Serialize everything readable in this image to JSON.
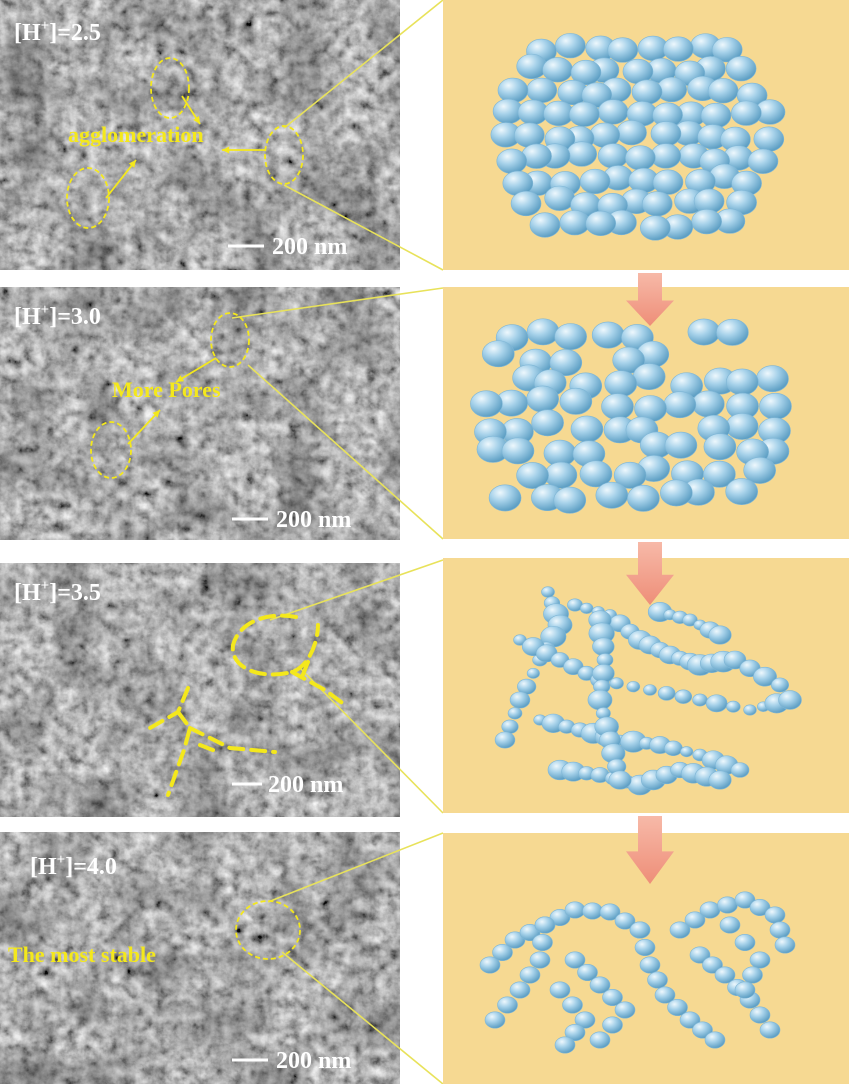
{
  "panels": [
    {
      "concentration_label": "[H",
      "concentration_sup": "+",
      "concentration_value": "]=2.5",
      "annotation": "agglomeration",
      "scale_bar": "200 nm"
    },
    {
      "concentration_label": "[H",
      "concentration_sup": "+",
      "concentration_value": "]=3.0",
      "annotation": "More Pores",
      "scale_bar": "200 nm"
    },
    {
      "concentration_label": "[H",
      "concentration_sup": "+",
      "concentration_value": "]=3.5",
      "annotation": "",
      "scale_bar": "200 nm"
    },
    {
      "concentration_label": "[H",
      "concentration_sup": "+",
      "concentration_value": "]=4.0",
      "annotation": "The most stable",
      "scale_bar": "200 nm"
    }
  ],
  "colors": {
    "sem_background": "#6b6b6b",
    "schematic_background": "#f6d992",
    "sphere_fill": "#a7d2ea",
    "sphere_highlight": "#e6f4fb",
    "sphere_shadow": "#5e9fc4",
    "annotation_yellow": "#f4e81c",
    "label_white": "#ffffff",
    "arrow_fill": "#f2a391",
    "connector_line": "#e8e25a"
  },
  "icons": {
    "down_arrow": "down-arrow-icon",
    "sphere": "sphere-particle-icon"
  }
}
